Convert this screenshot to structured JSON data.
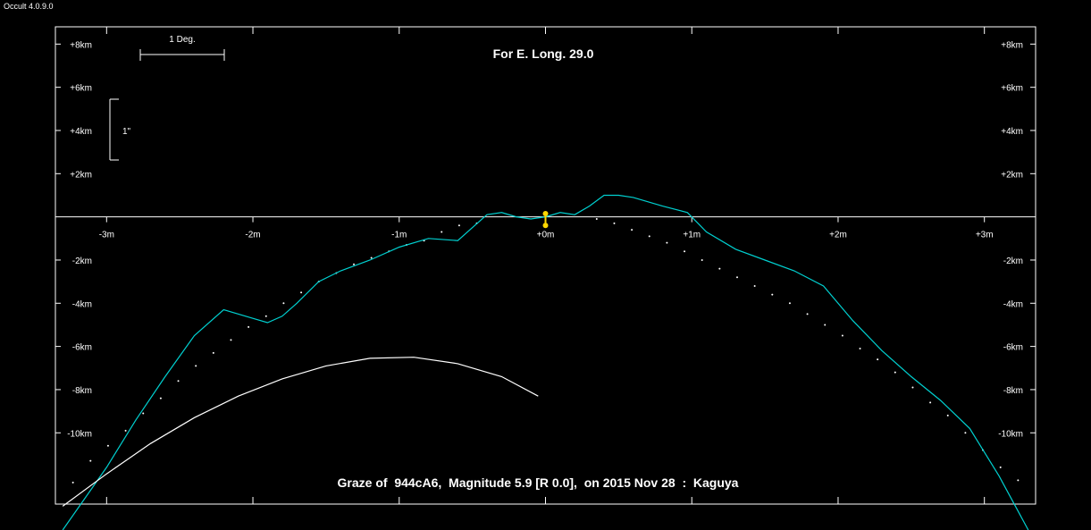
{
  "app": {
    "title": "Occult 4.0.9.0"
  },
  "chart_data": {
    "type": "line",
    "title": "For E. Long. 29.0",
    "subtitle": "Graze of  944cA6,  Magnitude 5.9 [R 0.0],  on 2015 Nov 28  :  Kaguya",
    "scale_bars": {
      "horizontal_label": "1 Deg.",
      "vertical_label": "1\""
    },
    "xlim": [
      -3.35,
      3.35
    ],
    "ylim": [
      -13.3,
      8.8
    ],
    "x_ticks": [
      {
        "value": -3,
        "label": "-3m"
      },
      {
        "value": -2,
        "label": "-2m"
      },
      {
        "value": -1,
        "label": "-1m"
      },
      {
        "value": 0,
        "label": "+0m"
      },
      {
        "value": 1,
        "label": "+1m"
      },
      {
        "value": 2,
        "label": "+2m"
      },
      {
        "value": 3,
        "label": "+3m"
      }
    ],
    "y_ticks": [
      {
        "value": 8,
        "label": "+8km"
      },
      {
        "value": 6,
        "label": "+6km"
      },
      {
        "value": 4,
        "label": "+4km"
      },
      {
        "value": 2,
        "label": "+2km"
      },
      {
        "value": -2,
        "label": "-2km"
      },
      {
        "value": -4,
        "label": "-4km"
      },
      {
        "value": -6,
        "label": "-6km"
      },
      {
        "value": -8,
        "label": "-8km"
      },
      {
        "value": -10,
        "label": "-10km"
      }
    ],
    "series": [
      {
        "style": "dotted",
        "color": "#ffffff",
        "x": [
          -3.23,
          -3.11,
          -2.99,
          -2.87,
          -2.75,
          -2.63,
          -2.51,
          -2.39,
          -2.27,
          -2.15,
          -2.03,
          -1.91,
          -1.79,
          -1.67,
          -1.55,
          -1.43,
          -1.31,
          -1.19,
          -1.07,
          -0.95,
          -0.83,
          -0.71,
          -0.59,
          -0.47,
          0.35,
          0.47,
          0.59,
          0.71,
          0.83,
          0.95,
          1.07,
          1.19,
          1.31,
          1.43,
          1.55,
          1.67,
          1.79,
          1.91,
          2.03,
          2.15,
          2.27,
          2.39,
          2.51,
          2.63,
          2.75,
          2.87,
          2.99,
          3.11,
          3.23
        ],
        "y": [
          -12.3,
          -11.3,
          -10.6,
          -9.9,
          -9.1,
          -8.4,
          -7.6,
          -6.9,
          -6.3,
          -5.7,
          -5.1,
          -4.6,
          -4.0,
          -3.5,
          -3.0,
          -2.6,
          -2.2,
          -1.9,
          -1.6,
          -1.3,
          -1.1,
          -0.7,
          -0.4,
          -0.3,
          -0.1,
          -0.3,
          -0.6,
          -0.9,
          -1.2,
          -1.6,
          -2.0,
          -2.4,
          -2.8,
          -3.2,
          -3.6,
          -4.0,
          -4.5,
          -5.0,
          -5.5,
          -6.1,
          -6.6,
          -7.2,
          -7.9,
          -8.6,
          -9.2,
          -10.0,
          -10.8,
          -11.6,
          -12.2
        ]
      },
      {
        "style": "solid",
        "color": "#00d0d0",
        "x": [
          -3.3,
          -3.0,
          -2.8,
          -2.6,
          -2.4,
          -2.2,
          -2.0,
          -1.9,
          -1.8,
          -1.7,
          -1.55,
          -1.4,
          -1.2,
          -1.0,
          -0.8,
          -0.6,
          -0.5,
          -0.4,
          -0.3,
          -0.2,
          -0.1,
          0.0,
          0.1,
          0.2,
          0.3,
          0.4,
          0.5,
          0.6,
          0.8,
          0.97,
          1.1,
          1.3,
          1.5,
          1.7,
          1.9,
          2.1,
          2.3,
          2.5,
          2.7,
          2.9,
          3.1,
          3.3
        ],
        "y": [
          -14.5,
          -11.6,
          -9.4,
          -7.4,
          -5.5,
          -4.3,
          -4.7,
          -4.9,
          -4.6,
          -4.0,
          -3.0,
          -2.5,
          -2.0,
          -1.4,
          -1.0,
          -1.1,
          -0.5,
          0.1,
          0.2,
          0.0,
          -0.1,
          0.0,
          0.2,
          0.1,
          0.5,
          1.0,
          1.0,
          0.9,
          0.5,
          0.2,
          -0.7,
          -1.5,
          -2.0,
          -2.5,
          -3.2,
          -4.8,
          -6.2,
          -7.4,
          -8.5,
          -9.8,
          -12.0,
          -14.5
        ]
      },
      {
        "style": "solid",
        "color": "#ffffff",
        "x": [
          -3.3,
          -3.0,
          -2.7,
          -2.4,
          -2.1,
          -1.8,
          -1.5,
          -1.2,
          -0.9,
          -0.6,
          -0.3,
          -0.05
        ],
        "y": [
          -13.4,
          -11.9,
          -10.5,
          -9.3,
          -8.3,
          -7.5,
          -6.9,
          -6.55,
          -6.5,
          -6.8,
          -7.4,
          -8.3
        ]
      }
    ],
    "markers": [
      {
        "x": 0.0,
        "y": 0.15,
        "color": "#ffd700"
      },
      {
        "x": 0.0,
        "y": -0.4,
        "color": "#ffd700"
      }
    ],
    "grid": false,
    "legend": "none"
  }
}
